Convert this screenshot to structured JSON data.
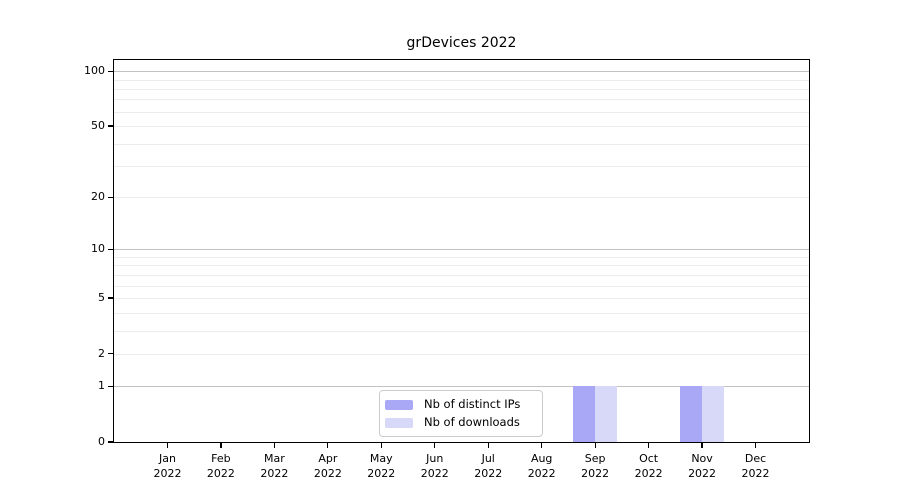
{
  "chart_data": {
    "type": "bar",
    "title": "grDevices 2022",
    "year": "2022",
    "categories": [
      "Jan",
      "Feb",
      "Mar",
      "Apr",
      "May",
      "Jun",
      "Jul",
      "Aug",
      "Sep",
      "Oct",
      "Nov",
      "Dec"
    ],
    "series": [
      {
        "name": "Nb of distinct IPs",
        "color": "#a8a8f7",
        "values": [
          0,
          0,
          0,
          0,
          0,
          0,
          0,
          0,
          1,
          0,
          1,
          0
        ]
      },
      {
        "name": "Nb of downloads",
        "color": "#d8d8f8",
        "values": [
          0,
          0,
          0,
          0,
          0,
          0,
          0,
          0,
          1,
          0,
          1,
          0
        ]
      }
    ],
    "yscale": "log1p",
    "ylim": [
      0,
      115
    ],
    "ytick_labels": [
      "0",
      "1",
      "2",
      "5",
      "10",
      "20",
      "50",
      "100"
    ],
    "yticks": [
      0,
      1,
      2,
      5,
      10,
      20,
      50,
      100
    ],
    "grid_major": [
      1,
      10,
      100
    ],
    "grid_minor": [
      2,
      3,
      4,
      5,
      6,
      7,
      8,
      9,
      20,
      30,
      40,
      50,
      60,
      70,
      80,
      90
    ],
    "legend_position": "inside-bottom-center",
    "colors": {
      "grid_major": "#c2c2c2",
      "grid_minor": "#ececec",
      "spine": "#000000",
      "text": "#000000",
      "legend_border": "#cccccc",
      "background": "#ffffff"
    }
  }
}
